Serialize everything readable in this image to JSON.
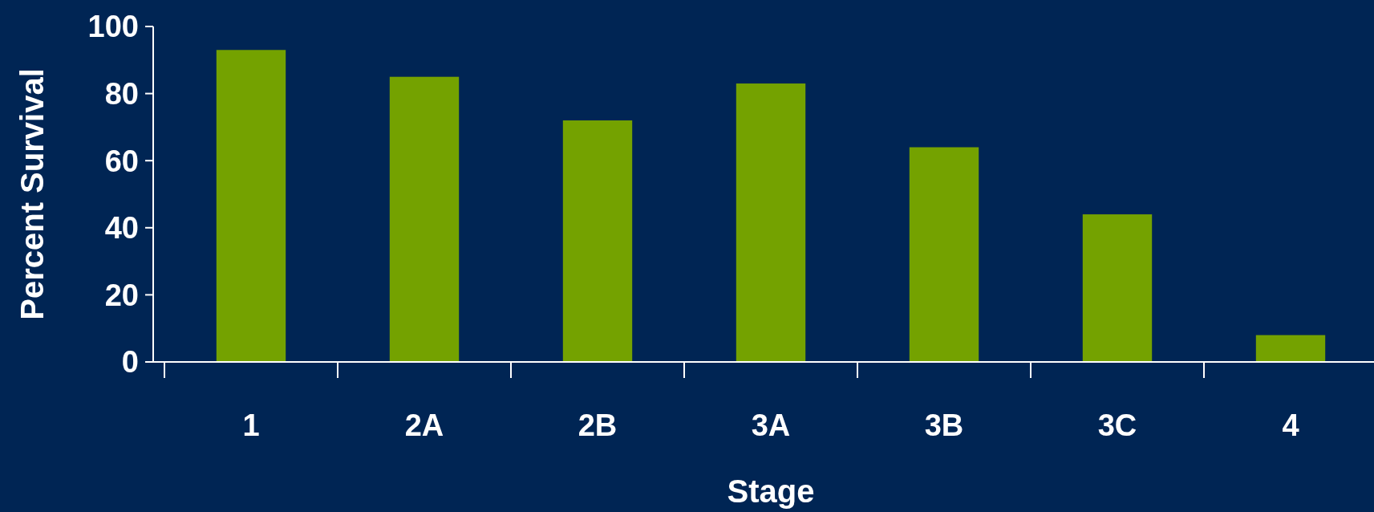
{
  "chart_data": {
    "type": "bar",
    "xlabel": "Stage",
    "ylabel": "Percent Survival",
    "categories": [
      "1",
      "2A",
      "2B",
      "3A",
      "3B",
      "3C",
      "4"
    ],
    "values": [
      93,
      85,
      72,
      83,
      64,
      44,
      8
    ],
    "color": "#74a200",
    "ylim": [
      0,
      100
    ],
    "yticks": [
      0,
      20,
      40,
      60,
      80,
      100
    ],
    "grid": false
  }
}
